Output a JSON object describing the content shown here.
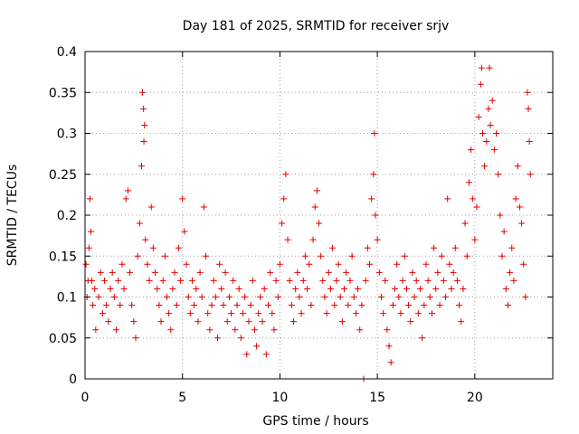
{
  "chart_data": {
    "type": "scatter",
    "title": "Day 181 of 2025, SRMTID for receiver srjv",
    "xlabel": "GPS time / hours",
    "ylabel": "SRMTID / TECUs",
    "xlim": [
      0,
      24
    ],
    "ylim": [
      0,
      0.4
    ],
    "x_ticks": [
      0,
      5,
      10,
      15,
      20
    ],
    "x_tick_labels": [
      "0",
      "5",
      "10",
      "15",
      "20"
    ],
    "y_ticks": [
      0,
      0.05,
      0.1,
      0.15,
      0.2,
      0.25,
      0.3,
      0.35,
      0.4
    ],
    "y_tick_labels": [
      "0",
      "0.05",
      "0.1",
      "0.15",
      "0.2",
      "0.25",
      "0.3",
      "0.35",
      "0.4"
    ],
    "grid": true,
    "marker": "+",
    "color": "#e00000",
    "series": [
      {
        "name": "SRMTID",
        "points": [
          [
            0.05,
            0.14
          ],
          [
            0.1,
            0.1
          ],
          [
            0.15,
            0.12
          ],
          [
            0.2,
            0.16
          ],
          [
            0.25,
            0.22
          ],
          [
            0.3,
            0.18
          ],
          [
            0.35,
            0.12
          ],
          [
            0.4,
            0.09
          ],
          [
            0.5,
            0.11
          ],
          [
            0.55,
            0.06
          ],
          [
            0.7,
            0.1
          ],
          [
            0.8,
            0.13
          ],
          [
            0.9,
            0.08
          ],
          [
            1.0,
            0.12
          ],
          [
            1.1,
            0.09
          ],
          [
            1.2,
            0.07
          ],
          [
            1.3,
            0.11
          ],
          [
            1.4,
            0.13
          ],
          [
            1.5,
            0.1
          ],
          [
            1.6,
            0.06
          ],
          [
            1.7,
            0.12
          ],
          [
            1.8,
            0.09
          ],
          [
            1.9,
            0.14
          ],
          [
            2.0,
            0.11
          ],
          [
            2.1,
            0.22
          ],
          [
            2.2,
            0.23
          ],
          [
            2.3,
            0.13
          ],
          [
            2.4,
            0.09
          ],
          [
            2.5,
            0.07
          ],
          [
            2.6,
            0.05
          ],
          [
            2.7,
            0.15
          ],
          [
            2.8,
            0.19
          ],
          [
            2.9,
            0.26
          ],
          [
            2.95,
            0.35
          ],
          [
            3.0,
            0.33
          ],
          [
            3.02,
            0.29
          ],
          [
            3.05,
            0.31
          ],
          [
            3.1,
            0.17
          ],
          [
            3.2,
            0.14
          ],
          [
            3.3,
            0.12
          ],
          [
            3.4,
            0.21
          ],
          [
            3.5,
            0.16
          ],
          [
            3.6,
            0.13
          ],
          [
            3.7,
            0.11
          ],
          [
            3.8,
            0.09
          ],
          [
            3.9,
            0.07
          ],
          [
            4.0,
            0.12
          ],
          [
            4.1,
            0.15
          ],
          [
            4.2,
            0.1
          ],
          [
            4.3,
            0.08
          ],
          [
            4.4,
            0.06
          ],
          [
            4.5,
            0.11
          ],
          [
            4.6,
            0.13
          ],
          [
            4.7,
            0.09
          ],
          [
            4.8,
            0.16
          ],
          [
            4.9,
            0.12
          ],
          [
            5.0,
            0.22
          ],
          [
            5.1,
            0.18
          ],
          [
            5.2,
            0.14
          ],
          [
            5.3,
            0.1
          ],
          [
            5.4,
            0.08
          ],
          [
            5.5,
            0.12
          ],
          [
            5.6,
            0.09
          ],
          [
            5.7,
            0.11
          ],
          [
            5.8,
            0.07
          ],
          [
            5.9,
            0.13
          ],
          [
            6.0,
            0.1
          ],
          [
            6.1,
            0.21
          ],
          [
            6.2,
            0.15
          ],
          [
            6.3,
            0.08
          ],
          [
            6.4,
            0.06
          ],
          [
            6.5,
            0.09
          ],
          [
            6.6,
            0.12
          ],
          [
            6.7,
            0.1
          ],
          [
            6.8,
            0.05
          ],
          [
            6.9,
            0.14
          ],
          [
            7.0,
            0.11
          ],
          [
            7.1,
            0.09
          ],
          [
            7.2,
            0.13
          ],
          [
            7.3,
            0.07
          ],
          [
            7.4,
            0.1
          ],
          [
            7.5,
            0.08
          ],
          [
            7.6,
            0.12
          ],
          [
            7.7,
            0.06
          ],
          [
            7.8,
            0.09
          ],
          [
            7.9,
            0.11
          ],
          [
            8.0,
            0.05
          ],
          [
            8.1,
            0.08
          ],
          [
            8.2,
            0.1
          ],
          [
            8.3,
            0.03
          ],
          [
            8.4,
            0.07
          ],
          [
            8.5,
            0.09
          ],
          [
            8.6,
            0.12
          ],
          [
            8.7,
            0.06
          ],
          [
            8.8,
            0.04
          ],
          [
            8.9,
            0.08
          ],
          [
            9.0,
            0.1
          ],
          [
            9.1,
            0.07
          ],
          [
            9.2,
            0.11
          ],
          [
            9.3,
            0.03
          ],
          [
            9.4,
            0.09
          ],
          [
            9.5,
            0.13
          ],
          [
            9.6,
            0.08
          ],
          [
            9.7,
            0.06
          ],
          [
            9.8,
            0.12
          ],
          [
            9.9,
            0.1
          ],
          [
            10.0,
            0.14
          ],
          [
            10.1,
            0.19
          ],
          [
            10.2,
            0.22
          ],
          [
            10.3,
            0.25
          ],
          [
            10.4,
            0.17
          ],
          [
            10.5,
            0.12
          ],
          [
            10.6,
            0.09
          ],
          [
            10.7,
            0.07
          ],
          [
            10.8,
            0.11
          ],
          [
            10.9,
            0.13
          ],
          [
            11.0,
            0.1
          ],
          [
            11.1,
            0.08
          ],
          [
            11.2,
            0.12
          ],
          [
            11.3,
            0.15
          ],
          [
            11.4,
            0.11
          ],
          [
            11.5,
            0.14
          ],
          [
            11.6,
            0.09
          ],
          [
            11.7,
            0.17
          ],
          [
            11.8,
            0.21
          ],
          [
            11.9,
            0.23
          ],
          [
            12.0,
            0.19
          ],
          [
            12.1,
            0.15
          ],
          [
            12.2,
            0.12
          ],
          [
            12.3,
            0.1
          ],
          [
            12.4,
            0.08
          ],
          [
            12.5,
            0.13
          ],
          [
            12.6,
            0.11
          ],
          [
            12.7,
            0.16
          ],
          [
            12.8,
            0.09
          ],
          [
            12.9,
            0.12
          ],
          [
            13.0,
            0.14
          ],
          [
            13.1,
            0.1
          ],
          [
            13.2,
            0.07
          ],
          [
            13.3,
            0.11
          ],
          [
            13.4,
            0.13
          ],
          [
            13.5,
            0.09
          ],
          [
            13.6,
            0.12
          ],
          [
            13.7,
            0.15
          ],
          [
            13.8,
            0.1
          ],
          [
            13.9,
            0.08
          ],
          [
            14.0,
            0.11
          ],
          [
            14.1,
            0.06
          ],
          [
            14.2,
            0.09
          ],
          [
            14.3,
            0.0
          ],
          [
            14.4,
            0.12
          ],
          [
            14.5,
            0.16
          ],
          [
            14.6,
            0.14
          ],
          [
            14.7,
            0.22
          ],
          [
            14.8,
            0.25
          ],
          [
            14.85,
            0.3
          ],
          [
            14.9,
            0.2
          ],
          [
            15.0,
            0.17
          ],
          [
            15.1,
            0.13
          ],
          [
            15.2,
            0.1
          ],
          [
            15.3,
            0.08
          ],
          [
            15.4,
            0.12
          ],
          [
            15.5,
            0.06
          ],
          [
            15.6,
            0.04
          ],
          [
            15.7,
            0.02
          ],
          [
            15.8,
            0.09
          ],
          [
            15.9,
            0.11
          ],
          [
            16.0,
            0.14
          ],
          [
            16.1,
            0.1
          ],
          [
            16.2,
            0.08
          ],
          [
            16.3,
            0.12
          ],
          [
            16.4,
            0.15
          ],
          [
            16.5,
            0.11
          ],
          [
            16.6,
            0.09
          ],
          [
            16.7,
            0.07
          ],
          [
            16.8,
            0.13
          ],
          [
            16.9,
            0.1
          ],
          [
            17.0,
            0.12
          ],
          [
            17.1,
            0.08
          ],
          [
            17.2,
            0.11
          ],
          [
            17.3,
            0.05
          ],
          [
            17.4,
            0.09
          ],
          [
            17.5,
            0.14
          ],
          [
            17.6,
            0.12
          ],
          [
            17.7,
            0.1
          ],
          [
            17.8,
            0.08
          ],
          [
            17.9,
            0.16
          ],
          [
            18.0,
            0.11
          ],
          [
            18.1,
            0.13
          ],
          [
            18.2,
            0.09
          ],
          [
            18.3,
            0.15
          ],
          [
            18.4,
            0.12
          ],
          [
            18.5,
            0.1
          ],
          [
            18.6,
            0.22
          ],
          [
            18.7,
            0.14
          ],
          [
            18.8,
            0.11
          ],
          [
            18.9,
            0.13
          ],
          [
            19.0,
            0.16
          ],
          [
            19.1,
            0.12
          ],
          [
            19.2,
            0.09
          ],
          [
            19.3,
            0.07
          ],
          [
            19.4,
            0.11
          ],
          [
            19.5,
            0.19
          ],
          [
            19.6,
            0.15
          ],
          [
            19.7,
            0.24
          ],
          [
            19.8,
            0.28
          ],
          [
            19.9,
            0.22
          ],
          [
            20.0,
            0.17
          ],
          [
            20.1,
            0.21
          ],
          [
            20.2,
            0.32
          ],
          [
            20.3,
            0.36
          ],
          [
            20.35,
            0.38
          ],
          [
            20.4,
            0.3
          ],
          [
            20.5,
            0.26
          ],
          [
            20.6,
            0.29
          ],
          [
            20.7,
            0.33
          ],
          [
            20.75,
            0.38
          ],
          [
            20.8,
            0.31
          ],
          [
            20.9,
            0.34
          ],
          [
            21.0,
            0.28
          ],
          [
            21.1,
            0.3
          ],
          [
            21.2,
            0.25
          ],
          [
            21.3,
            0.2
          ],
          [
            21.4,
            0.15
          ],
          [
            21.5,
            0.18
          ],
          [
            21.6,
            0.11
          ],
          [
            21.7,
            0.09
          ],
          [
            21.8,
            0.13
          ],
          [
            21.9,
            0.16
          ],
          [
            22.0,
            0.12
          ],
          [
            22.1,
            0.22
          ],
          [
            22.2,
            0.26
          ],
          [
            22.3,
            0.21
          ],
          [
            22.4,
            0.19
          ],
          [
            22.5,
            0.14
          ],
          [
            22.6,
            0.1
          ],
          [
            22.7,
            0.35
          ],
          [
            22.75,
            0.33
          ],
          [
            22.8,
            0.29
          ],
          [
            22.85,
            0.25
          ]
        ]
      }
    ]
  }
}
